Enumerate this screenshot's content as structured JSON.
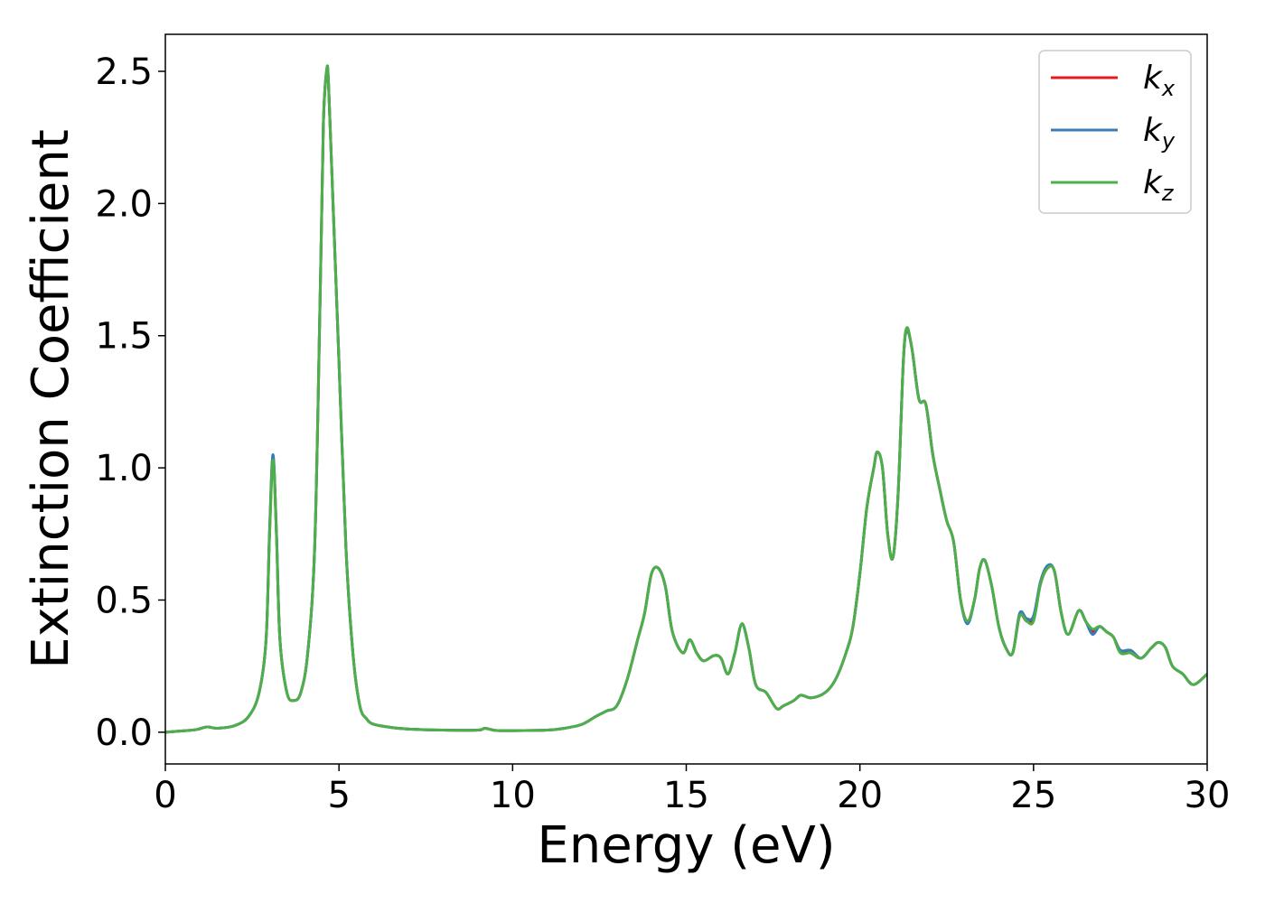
{
  "chart_data": {
    "type": "line",
    "title": "",
    "xlabel": "Energy (eV)",
    "ylabel": "Extinction Coefficient",
    "xlim": [
      0,
      30
    ],
    "ylim": [
      -0.12,
      2.64
    ],
    "xticks": [
      0,
      5,
      10,
      15,
      20,
      25,
      30
    ],
    "xtick_labels": [
      "0",
      "5",
      "10",
      "15",
      "20",
      "25",
      "30"
    ],
    "yticks": [
      0.0,
      0.5,
      1.0,
      1.5,
      2.0,
      2.5
    ],
    "ytick_labels": [
      "0.0",
      "0.5",
      "1.0",
      "1.5",
      "2.0",
      "2.5"
    ],
    "grid": false,
    "legend_position": "top-right",
    "x": [
      0.0,
      0.5,
      0.9,
      1.2,
      1.5,
      2.0,
      2.4,
      2.7,
      2.9,
      3.0,
      3.1,
      3.2,
      3.3,
      3.5,
      3.7,
      3.9,
      4.1,
      4.3,
      4.45,
      4.55,
      4.65,
      4.7,
      4.8,
      5.0,
      5.2,
      5.4,
      5.6,
      5.8,
      6.0,
      6.5,
      7.0,
      8.0,
      9.0,
      9.2,
      9.5,
      10.0,
      11.0,
      11.5,
      12.0,
      12.4,
      12.7,
      13.0,
      13.3,
      13.6,
      13.8,
      14.0,
      14.2,
      14.4,
      14.6,
      14.9,
      15.1,
      15.3,
      15.5,
      15.8,
      16.0,
      16.2,
      16.4,
      16.6,
      16.8,
      17.0,
      17.3,
      17.6,
      17.8,
      18.1,
      18.3,
      18.6,
      19.0,
      19.3,
      19.6,
      19.8,
      20.0,
      20.2,
      20.4,
      20.5,
      20.65,
      20.8,
      20.95,
      21.1,
      21.25,
      21.35,
      21.5,
      21.7,
      21.9,
      22.1,
      22.3,
      22.5,
      22.7,
      22.9,
      23.1,
      23.3,
      23.45,
      23.6,
      23.8,
      24.0,
      24.2,
      24.4,
      24.6,
      24.8,
      25.0,
      25.2,
      25.4,
      25.6,
      25.8,
      26.0,
      26.3,
      26.5,
      26.7,
      26.9,
      27.1,
      27.3,
      27.5,
      27.8,
      28.1,
      28.4,
      28.6,
      28.8,
      29.0,
      29.3,
      29.6,
      30.0
    ],
    "series": [
      {
        "name": "k_x",
        "label_base": "k",
        "label_sub": "x",
        "color": "#e41a1c",
        "y": [
          0.0,
          0.005,
          0.01,
          0.02,
          0.015,
          0.025,
          0.06,
          0.15,
          0.35,
          0.75,
          1.04,
          0.75,
          0.35,
          0.15,
          0.12,
          0.15,
          0.3,
          0.7,
          1.6,
          2.3,
          2.5,
          2.45,
          2.1,
          1.4,
          0.7,
          0.3,
          0.1,
          0.05,
          0.03,
          0.018,
          0.012,
          0.008,
          0.008,
          0.015,
          0.007,
          0.006,
          0.008,
          0.015,
          0.03,
          0.06,
          0.08,
          0.1,
          0.2,
          0.35,
          0.45,
          0.6,
          0.62,
          0.55,
          0.38,
          0.3,
          0.35,
          0.3,
          0.27,
          0.29,
          0.28,
          0.22,
          0.3,
          0.41,
          0.32,
          0.18,
          0.15,
          0.09,
          0.1,
          0.12,
          0.14,
          0.13,
          0.15,
          0.2,
          0.3,
          0.4,
          0.6,
          0.85,
          1.0,
          1.06,
          1.0,
          0.75,
          0.66,
          0.9,
          1.4,
          1.52,
          1.45,
          1.26,
          1.24,
          1.05,
          0.92,
          0.8,
          0.72,
          0.5,
          0.42,
          0.5,
          0.62,
          0.65,
          0.55,
          0.4,
          0.32,
          0.3,
          0.44,
          0.42,
          0.43,
          0.56,
          0.62,
          0.61,
          0.45,
          0.37,
          0.46,
          0.42,
          0.38,
          0.4,
          0.38,
          0.36,
          0.31,
          0.3,
          0.28,
          0.32,
          0.34,
          0.32,
          0.25,
          0.22,
          0.18,
          0.22
        ]
      },
      {
        "name": "k_y",
        "label_base": "k",
        "label_sub": "y",
        "color": "#377eb8",
        "y": [
          0.0,
          0.005,
          0.01,
          0.02,
          0.015,
          0.025,
          0.06,
          0.15,
          0.35,
          0.76,
          1.05,
          0.75,
          0.35,
          0.15,
          0.12,
          0.15,
          0.3,
          0.7,
          1.6,
          2.3,
          2.51,
          2.45,
          2.1,
          1.4,
          0.7,
          0.3,
          0.1,
          0.05,
          0.03,
          0.018,
          0.012,
          0.008,
          0.008,
          0.015,
          0.007,
          0.006,
          0.008,
          0.015,
          0.03,
          0.06,
          0.08,
          0.1,
          0.2,
          0.35,
          0.45,
          0.6,
          0.62,
          0.55,
          0.38,
          0.3,
          0.35,
          0.3,
          0.27,
          0.29,
          0.28,
          0.22,
          0.3,
          0.41,
          0.32,
          0.18,
          0.15,
          0.09,
          0.1,
          0.12,
          0.14,
          0.13,
          0.15,
          0.2,
          0.3,
          0.4,
          0.6,
          0.85,
          1.0,
          1.06,
          1.0,
          0.75,
          0.66,
          0.9,
          1.4,
          1.52,
          1.45,
          1.26,
          1.24,
          1.05,
          0.92,
          0.8,
          0.72,
          0.5,
          0.41,
          0.5,
          0.62,
          0.65,
          0.55,
          0.4,
          0.32,
          0.3,
          0.45,
          0.43,
          0.44,
          0.57,
          0.63,
          0.61,
          0.45,
          0.37,
          0.46,
          0.42,
          0.37,
          0.4,
          0.38,
          0.36,
          0.31,
          0.31,
          0.28,
          0.32,
          0.34,
          0.32,
          0.25,
          0.22,
          0.18,
          0.22
        ]
      },
      {
        "name": "k_z",
        "label_base": "k",
        "label_sub": "z",
        "color": "#4daf4a",
        "y": [
          0.0,
          0.005,
          0.01,
          0.02,
          0.015,
          0.025,
          0.06,
          0.15,
          0.35,
          0.74,
          1.03,
          0.74,
          0.35,
          0.15,
          0.12,
          0.15,
          0.3,
          0.7,
          1.6,
          2.3,
          2.51,
          2.45,
          2.1,
          1.4,
          0.7,
          0.3,
          0.1,
          0.05,
          0.03,
          0.018,
          0.012,
          0.008,
          0.008,
          0.015,
          0.007,
          0.006,
          0.008,
          0.015,
          0.03,
          0.06,
          0.08,
          0.1,
          0.2,
          0.35,
          0.45,
          0.6,
          0.62,
          0.55,
          0.38,
          0.3,
          0.35,
          0.3,
          0.27,
          0.29,
          0.28,
          0.22,
          0.3,
          0.41,
          0.32,
          0.18,
          0.15,
          0.09,
          0.1,
          0.12,
          0.14,
          0.13,
          0.15,
          0.2,
          0.3,
          0.4,
          0.6,
          0.85,
          1.0,
          1.06,
          1.0,
          0.75,
          0.66,
          0.9,
          1.4,
          1.53,
          1.45,
          1.26,
          1.24,
          1.05,
          0.92,
          0.8,
          0.72,
          0.5,
          0.42,
          0.5,
          0.62,
          0.65,
          0.55,
          0.4,
          0.32,
          0.3,
          0.44,
          0.42,
          0.42,
          0.56,
          0.62,
          0.61,
          0.45,
          0.37,
          0.46,
          0.42,
          0.39,
          0.4,
          0.38,
          0.36,
          0.3,
          0.3,
          0.28,
          0.32,
          0.34,
          0.32,
          0.25,
          0.22,
          0.18,
          0.22
        ]
      }
    ]
  }
}
